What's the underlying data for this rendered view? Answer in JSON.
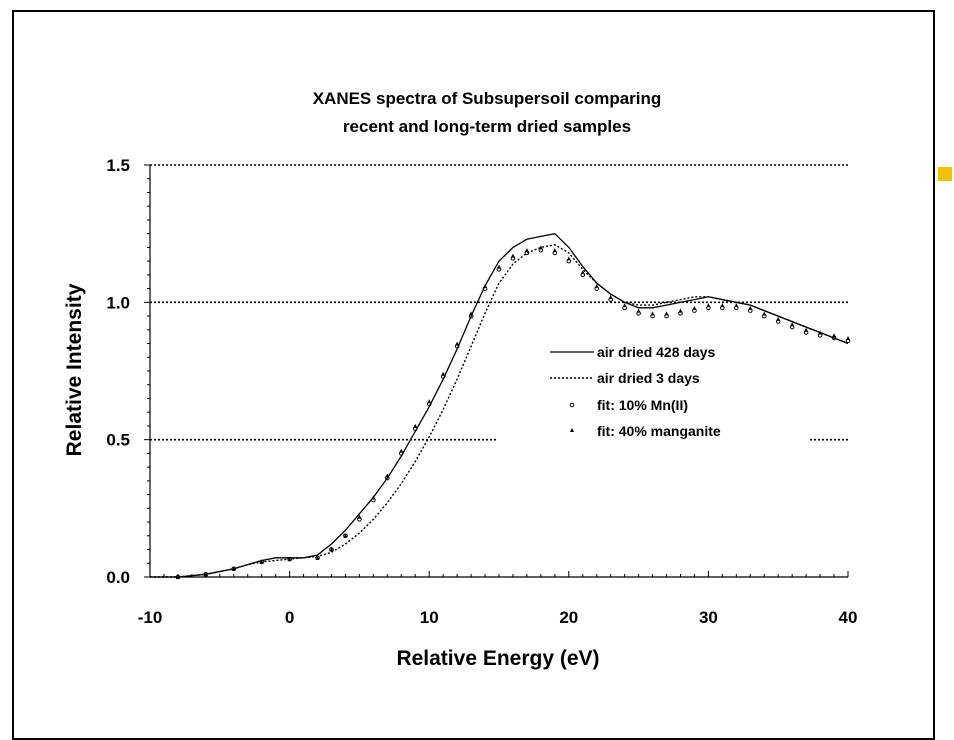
{
  "chart_data": {
    "type": "line",
    "title_lines": [
      "XANES spectra of Subsupersoil comparing",
      "recent and long-term dried samples"
    ],
    "xlabel": "Relative Energy (eV)",
    "ylabel": "Relative Intensity",
    "xlim": [
      -10,
      40
    ],
    "ylim": [
      0,
      1.5
    ],
    "xticks": [
      -10,
      0,
      10,
      20,
      30,
      40
    ],
    "yticks": [
      "0.0",
      "0.5",
      "1.0",
      "1.5"
    ],
    "ytick_values": [
      0,
      0.5,
      1.0,
      1.5
    ],
    "gridlines_y": [
      0.5,
      1.0,
      1.5
    ],
    "grid": "horizontal dotted",
    "legend_position": "center-right",
    "series": [
      {
        "name": "air dried 428 days",
        "style": "solid",
        "x": [
          -10,
          -8,
          -6,
          -4,
          -3,
          -2,
          -1,
          0,
          1,
          2,
          3,
          4,
          5,
          6,
          7,
          8,
          9,
          10,
          11,
          12,
          13,
          14,
          15,
          16,
          17,
          18,
          19,
          20,
          21,
          22,
          23,
          24,
          25,
          26,
          27,
          28,
          29,
          30,
          31,
          32,
          33,
          34,
          35,
          36,
          37,
          38,
          39,
          40
        ],
        "y": [
          0.0,
          0.0,
          0.01,
          0.03,
          0.045,
          0.06,
          0.07,
          0.07,
          0.07,
          0.08,
          0.12,
          0.17,
          0.23,
          0.29,
          0.36,
          0.44,
          0.53,
          0.62,
          0.72,
          0.83,
          0.95,
          1.06,
          1.15,
          1.2,
          1.23,
          1.24,
          1.25,
          1.2,
          1.13,
          1.07,
          1.03,
          1.0,
          0.98,
          0.98,
          0.99,
          1.0,
          1.01,
          1.02,
          1.01,
          1.0,
          0.99,
          0.97,
          0.95,
          0.93,
          0.91,
          0.89,
          0.87,
          0.85
        ]
      },
      {
        "name": "air dried 3 days",
        "style": "dotted",
        "x": [
          -10,
          -8,
          -6,
          -4,
          -3,
          -2,
          -1,
          0,
          1,
          2,
          3,
          4,
          5,
          6,
          7,
          8,
          9,
          10,
          11,
          12,
          13,
          14,
          15,
          16,
          17,
          18,
          19,
          20,
          21,
          22,
          23,
          24,
          25,
          26,
          27,
          28,
          29,
          30,
          31,
          32,
          33,
          34,
          35,
          36,
          37,
          38,
          39,
          40
        ],
        "y": [
          0.0,
          0.0,
          0.01,
          0.03,
          0.045,
          0.055,
          0.06,
          0.065,
          0.07,
          0.075,
          0.09,
          0.12,
          0.16,
          0.21,
          0.27,
          0.34,
          0.42,
          0.51,
          0.61,
          0.72,
          0.84,
          0.96,
          1.07,
          1.14,
          1.18,
          1.2,
          1.21,
          1.18,
          1.12,
          1.07,
          1.03,
          1.0,
          0.99,
          0.99,
          1.0,
          1.01,
          1.02,
          1.02,
          1.01,
          1.0,
          0.99,
          0.97,
          0.95,
          0.93,
          0.91,
          0.89,
          0.87,
          0.85
        ]
      },
      {
        "name": "fit: 10% Mn(II)",
        "style": "circle",
        "x": [
          -8,
          -6,
          -4,
          -2,
          0,
          2,
          3,
          4,
          5,
          6,
          7,
          8,
          9,
          10,
          11,
          12,
          13,
          14,
          15,
          16,
          17,
          18,
          19,
          20,
          21,
          22,
          23,
          24,
          25,
          26,
          27,
          28,
          29,
          30,
          31,
          32,
          33,
          34,
          35,
          36,
          37,
          38,
          39,
          40
        ],
        "y": [
          0.0,
          0.01,
          0.03,
          0.055,
          0.065,
          0.07,
          0.1,
          0.15,
          0.21,
          0.28,
          0.36,
          0.45,
          0.54,
          0.63,
          0.73,
          0.84,
          0.95,
          1.05,
          1.12,
          1.16,
          1.18,
          1.19,
          1.18,
          1.15,
          1.1,
          1.05,
          1.01,
          0.98,
          0.96,
          0.95,
          0.95,
          0.96,
          0.97,
          0.98,
          0.98,
          0.98,
          0.97,
          0.95,
          0.93,
          0.91,
          0.89,
          0.88,
          0.87,
          0.86
        ]
      },
      {
        "name": "fit: 40% manganite",
        "style": "triangle",
        "x": [
          -8,
          -6,
          -4,
          -2,
          0,
          2,
          3,
          4,
          5,
          6,
          7,
          8,
          9,
          10,
          11,
          12,
          13,
          14,
          15,
          16,
          17,
          18,
          19,
          20,
          21,
          22,
          23,
          24,
          25,
          26,
          27,
          28,
          29,
          30,
          31,
          32,
          33,
          34,
          35,
          36,
          37,
          38,
          39,
          40
        ],
        "y": [
          0.0,
          0.01,
          0.03,
          0.055,
          0.065,
          0.07,
          0.1,
          0.15,
          0.22,
          0.29,
          0.37,
          0.46,
          0.55,
          0.64,
          0.74,
          0.85,
          0.96,
          1.06,
          1.13,
          1.17,
          1.19,
          1.2,
          1.19,
          1.16,
          1.11,
          1.06,
          1.02,
          0.99,
          0.97,
          0.96,
          0.96,
          0.97,
          0.98,
          0.99,
          0.99,
          0.99,
          0.98,
          0.96,
          0.94,
          0.92,
          0.9,
          0.89,
          0.88,
          0.87
        ]
      }
    ]
  }
}
